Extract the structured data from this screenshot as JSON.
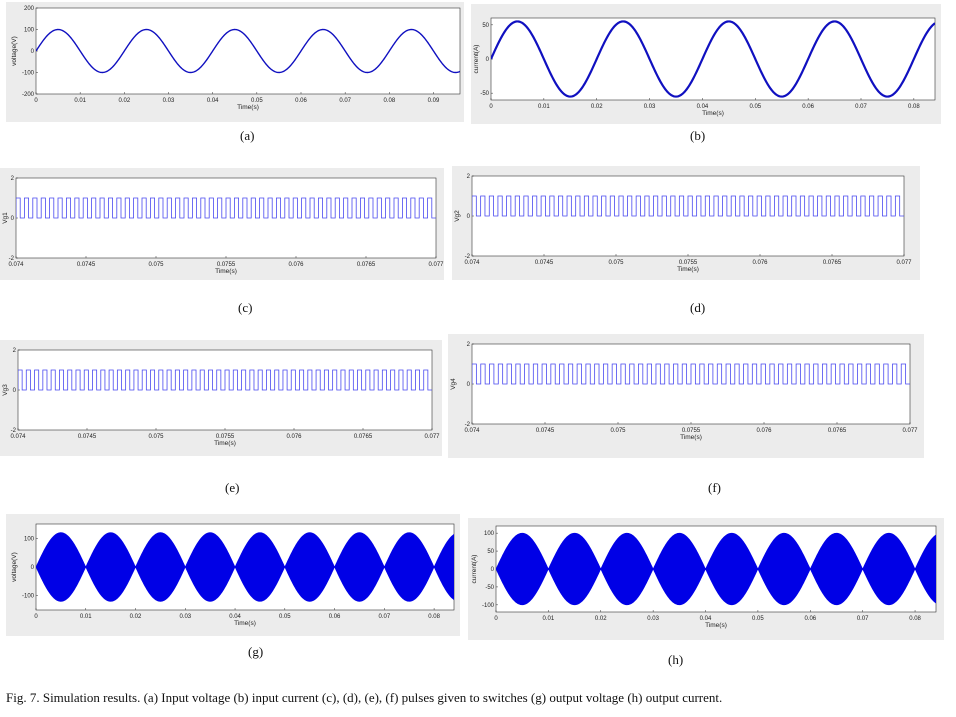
{
  "caption": "Fig. 7.  Simulation results. (a) Input voltage (b) input current (c), (d), (e), (f) pulses given to switches (g) output voltage (h) output current.",
  "panels": [
    {
      "id": "a",
      "label": "(a)",
      "xlabel": "Time(s)",
      "ylabel": "voltage(V)",
      "xticks": [
        "0",
        "0.01",
        "0.02",
        "0.03",
        "0.04",
        "0.05",
        "0.06",
        "0.07",
        "0.08",
        "0.09"
      ],
      "yticks": [
        "200",
        "100",
        "0",
        "-100",
        "-200"
      ],
      "trace_color": "#1010c0"
    },
    {
      "id": "b",
      "label": "(b)",
      "xlabel": "Time(s)",
      "ylabel": "current(A)",
      "xticks": [
        "0",
        "0.01",
        "0.02",
        "0.03",
        "0.04",
        "0.05",
        "0.06",
        "0.07",
        "0.08"
      ],
      "yticks": [
        "50",
        "0",
        "-50"
      ],
      "trace_color": "#1010c0"
    },
    {
      "id": "c",
      "label": "(c)",
      "xlabel": "Time(s)",
      "ylabel": "Vg1",
      "xticks": [
        "0.074",
        "0.0745",
        "0.075",
        "0.0755",
        "0.076",
        "0.0765",
        "0.077"
      ],
      "yticks": [
        "2",
        "0",
        "-2"
      ],
      "trace_color": "#4a4af0"
    },
    {
      "id": "d",
      "label": "(d)",
      "xlabel": "Time(s)",
      "ylabel": "Vg2",
      "xticks": [
        "0.074",
        "0.0745",
        "0.075",
        "0.0755",
        "0.076",
        "0.0765",
        "0.077"
      ],
      "yticks": [
        "2",
        "0",
        "-2"
      ],
      "trace_color": "#4a4af0"
    },
    {
      "id": "e",
      "label": "(e)",
      "xlabel": "Time(s)",
      "ylabel": "Vg3",
      "xticks": [
        "0.074",
        "0.0745",
        "0.075",
        "0.0755",
        "0.076",
        "0.0765",
        "0.077"
      ],
      "yticks": [
        "2",
        "0",
        "-2"
      ],
      "trace_color": "#4a4af0"
    },
    {
      "id": "f",
      "label": "(f)",
      "xlabel": "Time(s)",
      "ylabel": "Vg4",
      "xticks": [
        "0.074",
        "0.0745",
        "0.075",
        "0.0755",
        "0.076",
        "0.0765",
        "0.077"
      ],
      "yticks": [
        "2",
        "0",
        "-2"
      ],
      "trace_color": "#4a4af0"
    },
    {
      "id": "g",
      "label": "(g)",
      "xlabel": "Time(s)",
      "ylabel": "voltage(V)",
      "xticks": [
        "0",
        "0.01",
        "0.02",
        "0.03",
        "0.04",
        "0.05",
        "0.06",
        "0.07",
        "0.08"
      ],
      "yticks": [
        "100",
        "0",
        "-100"
      ],
      "trace_color": "#0000e6"
    },
    {
      "id": "h",
      "label": "(h)",
      "xlabel": "Time(s)",
      "ylabel": "current(A)",
      "xticks": [
        "0",
        "0.01",
        "0.02",
        "0.03",
        "0.04",
        "0.05",
        "0.06",
        "0.07",
        "0.08"
      ],
      "yticks": [
        "100",
        "50",
        "0",
        "-50",
        "-100"
      ],
      "trace_color": "#0000e6"
    }
  ],
  "chart_data": [
    {
      "type": "line",
      "panel": "(a)",
      "xlabel": "Time(s)",
      "ylabel": "voltage(V)",
      "xlim": [
        0,
        0.096
      ],
      "ylim": [
        -200,
        200
      ],
      "series": [
        {
          "waveform": "sine",
          "amplitude": 100,
          "frequency_hz": 50,
          "phase": "starts at 0, rising"
        }
      ]
    },
    {
      "type": "line",
      "panel": "(b)",
      "xlabel": "Time(s)",
      "ylabel": "current(A)",
      "xlim": [
        0,
        0.084
      ],
      "ylim": [
        -60,
        60
      ],
      "series": [
        {
          "waveform": "sine",
          "amplitude": 55,
          "frequency_hz": 50,
          "phase": "starts at 0, rising"
        }
      ]
    },
    {
      "type": "line",
      "panel": "(c)",
      "xlabel": "Time(s)",
      "ylabel": "Vg1",
      "xlim": [
        0.074,
        0.077
      ],
      "ylim": [
        -2,
        2
      ],
      "series": [
        {
          "waveform": "square pulses",
          "low": 0,
          "high": 1,
          "pulse_count": 50
        }
      ]
    },
    {
      "type": "line",
      "panel": "(d)",
      "xlabel": "Time(s)",
      "ylabel": "Vg2",
      "xlim": [
        0.074,
        0.077
      ],
      "ylim": [
        -2,
        2
      ],
      "series": [
        {
          "waveform": "square pulses",
          "low": 0,
          "high": 1,
          "pulse_count": 50
        }
      ]
    },
    {
      "type": "line",
      "panel": "(e)",
      "xlabel": "Time(s)",
      "ylabel": "Vg3",
      "xlim": [
        0.074,
        0.077
      ],
      "ylim": [
        -2,
        2
      ],
      "series": [
        {
          "waveform": "square pulses",
          "low": 0,
          "high": 1,
          "pulse_count": 50
        }
      ]
    },
    {
      "type": "line",
      "panel": "(f)",
      "xlabel": "Time(s)",
      "ylabel": "Vg4",
      "xlim": [
        0.074,
        0.077
      ],
      "ylim": [
        -2,
        2
      ],
      "series": [
        {
          "waveform": "square pulses",
          "low": 0,
          "high": 1,
          "pulse_count": 50
        }
      ]
    },
    {
      "type": "area",
      "panel": "(g)",
      "xlabel": "Time(s)",
      "ylabel": "voltage(V)",
      "xlim": [
        0,
        0.084
      ],
      "ylim": [
        -150,
        150
      ],
      "series": [
        {
          "waveform": "high-frequency modulated, envelope |sin(2*pi*50*t)|",
          "peak": 120,
          "envelope_lobes": 8
        }
      ]
    },
    {
      "type": "area",
      "panel": "(h)",
      "xlabel": "Time(s)",
      "ylabel": "current(A)",
      "xlim": [
        0,
        0.084
      ],
      "ylim": [
        -120,
        120
      ],
      "series": [
        {
          "waveform": "high-frequency modulated, envelope |sin(2*pi*50*t)|",
          "peak": 100,
          "envelope_lobes": 8
        }
      ]
    }
  ]
}
